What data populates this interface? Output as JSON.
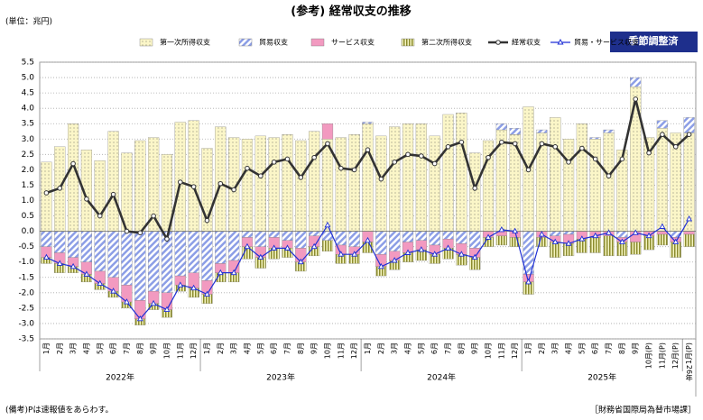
{
  "chart_data": {
    "type": "bar",
    "title": "(参考) 経常収支の推移",
    "unit_label": "(単位：兆円)",
    "button": "季節調整済",
    "note": "(備考)Pは速報値をあらわす。",
    "source": "［財務省国際局為替市場課］",
    "categories": [
      "1月",
      "2月",
      "3月",
      "4月",
      "5月",
      "6月",
      "7月",
      "8月",
      "9月",
      "10月",
      "11月",
      "12月",
      "1月",
      "2月",
      "3月",
      "4月",
      "5月",
      "6月",
      "7月",
      "8月",
      "9月",
      "10月",
      "11月",
      "12月",
      "1月",
      "2月",
      "3月",
      "4月",
      "5月",
      "6月",
      "7月",
      "8月",
      "9月",
      "10月",
      "11月",
      "12月",
      "1月",
      "2月",
      "3月",
      "4月",
      "5月",
      "6月",
      "7月",
      "8月",
      "9月",
      "10月(P)",
      "11月(P)",
      "12月(P)",
      "1月(P)"
    ],
    "years": [
      "2022年",
      "2023年",
      "2024年",
      "2025年",
      "26年"
    ],
    "ylim": [
      -3.5,
      5.5
    ],
    "yticks": [
      {
        "value": 5.5,
        "label": "5.5"
      },
      {
        "value": 5,
        "label": "5.0"
      },
      {
        "value": 4.5,
        "label": "4.5"
      },
      {
        "value": 4,
        "label": "4.0"
      },
      {
        "value": 3.5,
        "label": "3.5"
      },
      {
        "value": 3,
        "label": "3.0"
      },
      {
        "value": 2.5,
        "label": "2.5"
      },
      {
        "value": 2,
        "label": "2.0"
      },
      {
        "value": 1.5,
        "label": "1.5"
      },
      {
        "value": 1,
        "label": "1.0"
      },
      {
        "value": 0.5,
        "label": "0.5"
      },
      {
        "value": 0,
        "label": "0.0"
      },
      {
        "value": -0.5,
        "label": "-0.5"
      },
      {
        "value": -1,
        "label": "-1.0"
      },
      {
        "value": -1.5,
        "label": "-1.5"
      },
      {
        "value": -2,
        "label": "-2.0"
      },
      {
        "value": -2.5,
        "label": "-2.5"
      },
      {
        "value": -3,
        "label": "-3.0"
      },
      {
        "value": -3.5,
        "label": "-3.5"
      }
    ],
    "grid": true,
    "series": [
      {
        "name": "第一次所得収支",
        "type": "bar",
        "color": "#fbf6c8",
        "values": [
          2.25,
          2.75,
          3.5,
          2.65,
          2.3,
          3.25,
          2.55,
          2.95,
          3.05,
          2.5,
          3.55,
          3.6,
          2.7,
          3.4,
          3.05,
          3.0,
          3.1,
          3.05,
          3.15,
          2.95,
          3.25,
          3.0,
          3.05,
          3.15,
          3.5,
          3.1,
          3.4,
          3.5,
          3.5,
          3.1,
          3.8,
          3.85,
          2.55,
          2.95,
          3.3,
          3.15,
          4.05,
          3.2,
          3.7,
          3.0,
          3.5,
          3.0,
          3.2,
          2.65,
          4.7,
          3.05,
          3.35,
          3.2,
          3.2
        ]
      },
      {
        "name": "貿易収支",
        "type": "bar",
        "color": "#8c9ee6",
        "values": [
          -0.5,
          -0.7,
          -0.85,
          -1.0,
          -1.3,
          -1.5,
          -1.75,
          -2.25,
          -1.95,
          -2.0,
          -1.45,
          -1.35,
          -1.6,
          -1.05,
          -0.95,
          -0.2,
          -0.5,
          -0.2,
          -0.3,
          -0.55,
          -0.15,
          -0.3,
          -0.45,
          -0.5,
          0.05,
          -0.75,
          -0.65,
          -0.35,
          -0.3,
          -0.45,
          -0.25,
          -0.4,
          -0.55,
          0.0,
          0.2,
          0.2,
          -1.4,
          0.1,
          -0.15,
          -0.1,
          0.0,
          0.05,
          0.1,
          -0.2,
          0.3,
          0.0,
          0.25,
          -0.2,
          0.5
        ]
      },
      {
        "name": "サービス収支",
        "type": "bar",
        "color": "#f29ac0",
        "values": [
          -0.35,
          -0.35,
          -0.3,
          -0.4,
          -0.4,
          -0.45,
          -0.55,
          -0.6,
          -0.4,
          -0.55,
          -0.3,
          -0.5,
          -0.45,
          -0.3,
          -0.4,
          -0.3,
          -0.35,
          -0.35,
          -0.25,
          -0.45,
          -0.35,
          0.5,
          -0.3,
          -0.25,
          -0.35,
          -0.4,
          -0.3,
          -0.35,
          -0.3,
          -0.3,
          -0.3,
          -0.35,
          -0.3,
          -0.2,
          -0.15,
          -0.2,
          -0.25,
          -0.2,
          -0.2,
          -0.3,
          -0.25,
          -0.2,
          -0.15,
          -0.15,
          -0.35,
          -0.15,
          -0.1,
          -0.15,
          -0.1
        ]
      },
      {
        "name": "第二次所得収支",
        "type": "bar",
        "color": "#8b8b2e",
        "values": [
          -0.2,
          -0.3,
          -0.2,
          -0.25,
          -0.2,
          -0.2,
          -0.2,
          -0.2,
          -0.2,
          -0.25,
          -0.2,
          -0.3,
          -0.3,
          -0.3,
          -0.3,
          -0.4,
          -0.35,
          -0.35,
          -0.3,
          -0.3,
          -0.3,
          -0.35,
          -0.3,
          -0.3,
          -0.35,
          -0.3,
          -0.3,
          -0.3,
          -0.35,
          -0.3,
          -0.35,
          -0.35,
          -0.4,
          -0.3,
          -0.3,
          -0.3,
          -0.4,
          -0.3,
          -0.5,
          -0.4,
          -0.45,
          -0.5,
          -0.65,
          -0.45,
          -0.4,
          -0.45,
          -0.35,
          -0.5,
          -0.4
        ]
      },
      {
        "name": "経常収支",
        "type": "line",
        "color": "#333333",
        "values": [
          1.25,
          1.4,
          2.2,
          1.05,
          0.5,
          1.2,
          0.0,
          -0.05,
          0.5,
          -0.25,
          1.6,
          1.45,
          0.35,
          1.55,
          1.35,
          2.05,
          1.8,
          2.25,
          2.35,
          1.75,
          2.4,
          2.85,
          2.05,
          2.0,
          2.65,
          1.7,
          2.25,
          2.5,
          2.45,
          2.2,
          2.75,
          2.9,
          1.4,
          2.4,
          2.9,
          2.85,
          2.0,
          2.85,
          2.75,
          2.25,
          2.7,
          2.35,
          1.8,
          2.35,
          4.3,
          2.55,
          3.15,
          2.75,
          3.15
        ]
      },
      {
        "name": "貿易・サービス収支",
        "type": "line",
        "color": "#1f2fd6",
        "values": [
          -0.85,
          -1.05,
          -1.15,
          -1.4,
          -1.7,
          -1.95,
          -2.3,
          -2.85,
          -2.35,
          -2.55,
          -1.75,
          -1.85,
          -2.05,
          -1.35,
          -1.35,
          -0.5,
          -0.85,
          -0.55,
          -0.55,
          -1.0,
          -0.5,
          0.2,
          -0.75,
          -0.75,
          -0.3,
          -1.15,
          -0.95,
          -0.7,
          -0.6,
          -0.75,
          -0.55,
          -0.75,
          -0.85,
          -0.2,
          0.05,
          0.0,
          -1.65,
          -0.1,
          -0.35,
          -0.4,
          -0.25,
          -0.15,
          -0.05,
          -0.35,
          -0.05,
          -0.15,
          0.15,
          -0.35,
          0.4
        ]
      }
    ]
  }
}
